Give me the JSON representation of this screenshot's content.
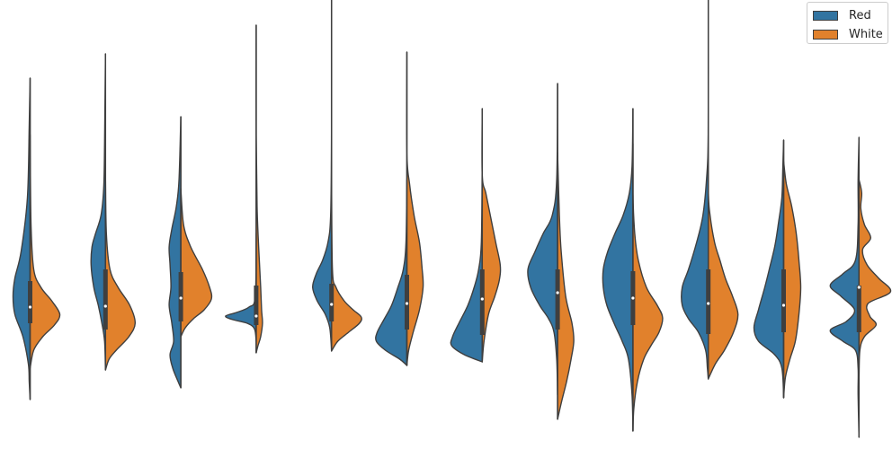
{
  "chart_data": {
    "type": "violin",
    "split": true,
    "categories": [
      "",
      "",
      "",
      "",
      "",
      "",
      "",
      "",
      "",
      "",
      "",
      ""
    ],
    "series": [
      {
        "name": "Red",
        "color": "#3274a1"
      },
      {
        "name": "White",
        "color": "#e1812c"
      }
    ],
    "ylim": [
      0,
      529
    ],
    "violins": [
      {
        "whisker": [
          445,
          87
        ],
        "box": [
          313,
          360
        ],
        "median": 342,
        "red": [
          [
            87,
            0
          ],
          [
            140,
            1
          ],
          [
            220,
            3
          ],
          [
            280,
            10
          ],
          [
            310,
            17
          ],
          [
            330,
            19
          ],
          [
            350,
            17
          ],
          [
            375,
            8
          ],
          [
            405,
            2
          ],
          [
            425,
            1
          ],
          [
            445,
            0
          ]
        ],
        "white": [
          [
            150,
            0
          ],
          [
            250,
            1
          ],
          [
            300,
            4
          ],
          [
            320,
            12
          ],
          [
            335,
            24
          ],
          [
            350,
            33
          ],
          [
            362,
            27
          ],
          [
            375,
            14
          ],
          [
            390,
            4
          ],
          [
            410,
            0
          ]
        ]
      },
      {
        "whisker": [
          412,
          60
        ],
        "box": [
          300,
          367
        ],
        "median": 341,
        "red": [
          [
            60,
            0
          ],
          [
            160,
            1
          ],
          [
            210,
            2
          ],
          [
            240,
            5
          ],
          [
            260,
            11
          ],
          [
            275,
            15
          ],
          [
            295,
            16
          ],
          [
            320,
            13
          ],
          [
            340,
            8
          ],
          [
            360,
            4
          ],
          [
            380,
            1
          ],
          [
            412,
            0
          ]
        ],
        "white": [
          [
            200,
            0
          ],
          [
            260,
            1
          ],
          [
            300,
            5
          ],
          [
            320,
            14
          ],
          [
            340,
            27
          ],
          [
            360,
            33
          ],
          [
            375,
            26
          ],
          [
            390,
            12
          ],
          [
            400,
            4
          ],
          [
            412,
            0
          ]
        ]
      },
      {
        "whisker": [
          432,
          130
        ],
        "box": [
          303,
          358
        ],
        "median": 332,
        "red": [
          [
            130,
            0
          ],
          [
            200,
            2
          ],
          [
            230,
            5
          ],
          [
            255,
            10
          ],
          [
            275,
            13
          ],
          [
            295,
            12
          ],
          [
            320,
            11
          ],
          [
            340,
            13
          ],
          [
            360,
            10
          ],
          [
            380,
            8
          ],
          [
            395,
            12
          ],
          [
            410,
            9
          ],
          [
            425,
            3
          ],
          [
            432,
            0
          ]
        ],
        "white": [
          [
            210,
            0
          ],
          [
            250,
            3
          ],
          [
            275,
            11
          ],
          [
            300,
            24
          ],
          [
            320,
            32
          ],
          [
            333,
            34
          ],
          [
            345,
            26
          ],
          [
            355,
            14
          ],
          [
            365,
            5
          ],
          [
            375,
            0
          ]
        ]
      },
      {
        "whisker": [
          393,
          28
        ],
        "box": [
          318,
          362
        ],
        "median": 352,
        "red": [
          [
            260,
            0
          ],
          [
            330,
            1
          ],
          [
            342,
            8
          ],
          [
            348,
            22
          ],
          [
            352,
            34
          ],
          [
            356,
            26
          ],
          [
            360,
            10
          ],
          [
            366,
            2
          ],
          [
            380,
            0
          ]
        ],
        "white": [
          [
            28,
            0
          ],
          [
            150,
            0
          ],
          [
            230,
            1
          ],
          [
            280,
            3
          ],
          [
            320,
            5
          ],
          [
            345,
            6
          ],
          [
            360,
            7
          ],
          [
            375,
            5
          ],
          [
            385,
            2
          ],
          [
            393,
            0
          ]
        ]
      },
      {
        "whisker": [
          391,
          0
        ],
        "box": [
          316,
          358
        ],
        "median": 339,
        "red": [
          [
            0,
            0
          ],
          [
            150,
            0
          ],
          [
            240,
            1
          ],
          [
            270,
            4
          ],
          [
            290,
            10
          ],
          [
            305,
            17
          ],
          [
            320,
            21
          ],
          [
            335,
            16
          ],
          [
            350,
            7
          ],
          [
            365,
            2
          ],
          [
            390,
            0
          ]
        ],
        "white": [
          [
            200,
            0
          ],
          [
            300,
            1
          ],
          [
            320,
            5
          ],
          [
            335,
            14
          ],
          [
            345,
            24
          ],
          [
            353,
            33
          ],
          [
            360,
            31
          ],
          [
            370,
            19
          ],
          [
            380,
            7
          ],
          [
            391,
            0
          ]
        ]
      },
      {
        "whisker": [
          407,
          58
        ],
        "box": [
          306,
          367
        ],
        "median": 338,
        "red": [
          [
            200,
            0
          ],
          [
            270,
            1
          ],
          [
            300,
            4
          ],
          [
            320,
            10
          ],
          [
            340,
            17
          ],
          [
            355,
            25
          ],
          [
            370,
            33
          ],
          [
            380,
            34
          ],
          [
            390,
            24
          ],
          [
            400,
            8
          ],
          [
            407,
            0
          ]
        ],
        "white": [
          [
            58,
            0
          ],
          [
            170,
            0
          ],
          [
            205,
            3
          ],
          [
            240,
            8
          ],
          [
            270,
            14
          ],
          [
            300,
            17
          ],
          [
            320,
            18
          ],
          [
            345,
            14
          ],
          [
            370,
            7
          ],
          [
            390,
            2
          ],
          [
            407,
            0
          ]
        ]
      },
      {
        "whisker": [
          403,
          121
        ],
        "box": [
          300,
          373
        ],
        "median": 333,
        "red": [
          [
            180,
            0
          ],
          [
            270,
            1
          ],
          [
            300,
            4
          ],
          [
            320,
            9
          ],
          [
            340,
            16
          ],
          [
            360,
            26
          ],
          [
            375,
            33
          ],
          [
            385,
            34
          ],
          [
            395,
            20
          ],
          [
            403,
            0
          ]
        ],
        "white": [
          [
            121,
            0
          ],
          [
            195,
            0
          ],
          [
            215,
            4
          ],
          [
            240,
            9
          ],
          [
            270,
            15
          ],
          [
            295,
            20
          ],
          [
            312,
            19
          ],
          [
            330,
            14
          ],
          [
            350,
            7
          ],
          [
            380,
            2
          ],
          [
            403,
            0
          ]
        ]
      },
      {
        "whisker": [
          467,
          93
        ],
        "box": [
          300,
          367
        ],
        "median": 326,
        "red": [
          [
            93,
            0
          ],
          [
            200,
            1
          ],
          [
            240,
            6
          ],
          [
            260,
            16
          ],
          [
            280,
            25
          ],
          [
            300,
            33
          ],
          [
            320,
            30
          ],
          [
            340,
            20
          ],
          [
            355,
            10
          ],
          [
            370,
            4
          ],
          [
            400,
            1
          ],
          [
            440,
            0
          ]
        ],
        "white": [
          [
            170,
            0
          ],
          [
            240,
            2
          ],
          [
            280,
            4
          ],
          [
            330,
            9
          ],
          [
            360,
            16
          ],
          [
            380,
            18
          ],
          [
            400,
            15
          ],
          [
            425,
            10
          ],
          [
            445,
            5
          ],
          [
            467,
            0
          ]
        ]
      },
      {
        "whisker": [
          480,
          121
        ],
        "box": [
          302,
          362
        ],
        "median": 332,
        "red": [
          [
            121,
            0
          ],
          [
            185,
            1
          ],
          [
            215,
            4
          ],
          [
            240,
            11
          ],
          [
            260,
            20
          ],
          [
            280,
            28
          ],
          [
            300,
            33
          ],
          [
            320,
            33
          ],
          [
            340,
            29
          ],
          [
            360,
            21
          ],
          [
            380,
            12
          ],
          [
            400,
            5
          ],
          [
            440,
            1
          ],
          [
            480,
            0
          ]
        ],
        "white": [
          [
            160,
            0
          ],
          [
            215,
            0
          ],
          [
            260,
            2
          ],
          [
            290,
            6
          ],
          [
            320,
            15
          ],
          [
            340,
            27
          ],
          [
            354,
            33
          ],
          [
            370,
            29
          ],
          [
            385,
            20
          ],
          [
            400,
            12
          ],
          [
            425,
            5
          ],
          [
            455,
            1
          ],
          [
            480,
            0
          ]
        ]
      },
      {
        "whisker": [
          422,
          0
        ],
        "box": [
          300,
          372
        ],
        "median": 338,
        "red": [
          [
            0,
            0
          ],
          [
            150,
            0
          ],
          [
            200,
            2
          ],
          [
            240,
            6
          ],
          [
            270,
            13
          ],
          [
            300,
            22
          ],
          [
            320,
            29
          ],
          [
            340,
            29
          ],
          [
            355,
            22
          ],
          [
            370,
            11
          ],
          [
            390,
            3
          ],
          [
            410,
            1
          ],
          [
            422,
            0
          ]
        ],
        "white": [
          [
            120,
            0
          ],
          [
            210,
            0
          ],
          [
            240,
            2
          ],
          [
            270,
            7
          ],
          [
            290,
            13
          ],
          [
            310,
            19
          ],
          [
            330,
            27
          ],
          [
            350,
            33
          ],
          [
            370,
            28
          ],
          [
            390,
            18
          ],
          [
            405,
            8
          ],
          [
            422,
            0
          ]
        ]
      },
      {
        "whisker": [
          443,
          156
        ],
        "box": [
          300,
          370
        ],
        "median": 340,
        "red": [
          [
            156,
            0
          ],
          [
            190,
            1
          ],
          [
            220,
            2
          ],
          [
            250,
            6
          ],
          [
            275,
            10
          ],
          [
            300,
            16
          ],
          [
            320,
            21
          ],
          [
            345,
            28
          ],
          [
            365,
            33
          ],
          [
            380,
            28
          ],
          [
            395,
            10
          ],
          [
            410,
            2
          ],
          [
            443,
            0
          ]
        ],
        "white": [
          [
            180,
            0
          ],
          [
            205,
            3
          ],
          [
            230,
            9
          ],
          [
            260,
            14
          ],
          [
            290,
            17
          ],
          [
            320,
            19
          ],
          [
            350,
            17
          ],
          [
            380,
            13
          ],
          [
            400,
            7
          ],
          [
            420,
            2
          ],
          [
            443,
            0
          ]
        ]
      },
      {
        "whisker": [
          487,
          153
        ],
        "box": [
          318,
          370
        ],
        "median": 320,
        "red": [
          [
            153,
            0
          ],
          [
            200,
            1
          ],
          [
            250,
            1
          ],
          [
            290,
            4
          ],
          [
            305,
            18
          ],
          [
            318,
            32
          ],
          [
            330,
            20
          ],
          [
            345,
            5
          ],
          [
            358,
            14
          ],
          [
            368,
            32
          ],
          [
            380,
            18
          ],
          [
            390,
            4
          ],
          [
            410,
            1
          ],
          [
            440,
            1
          ],
          [
            487,
            0
          ]
        ],
        "white": [
          [
            200,
            0
          ],
          [
            215,
            3
          ],
          [
            232,
            2
          ],
          [
            250,
            6
          ],
          [
            265,
            13
          ],
          [
            278,
            4
          ],
          [
            295,
            9
          ],
          [
            310,
            22
          ],
          [
            325,
            35
          ],
          [
            338,
            10
          ],
          [
            352,
            12
          ],
          [
            362,
            19
          ],
          [
            375,
            6
          ],
          [
            390,
            1
          ],
          [
            420,
            0
          ]
        ]
      }
    ]
  }
}
